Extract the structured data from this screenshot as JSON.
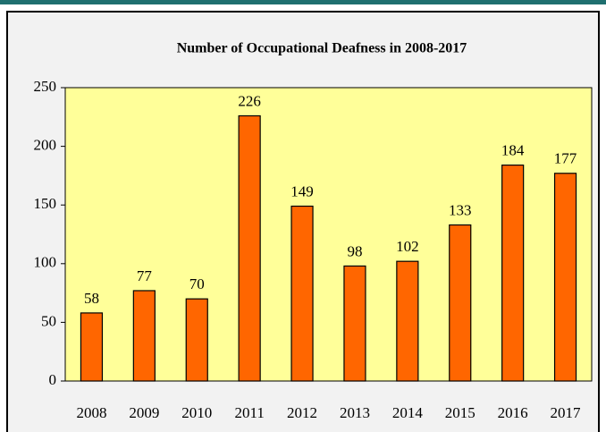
{
  "chart_data": {
    "type": "bar",
    "title": "Number of Occupational Deafness in 2008-2017",
    "categories": [
      "2008",
      "2009",
      "2010",
      "2011",
      "2012",
      "2013",
      "2014",
      "2015",
      "2016",
      "2017"
    ],
    "values": [
      58,
      77,
      70,
      226,
      149,
      98,
      102,
      133,
      184,
      177
    ],
    "color": "#ff6600",
    "plot_background": "#ffff99",
    "ylim": [
      0,
      250
    ],
    "yticks": [
      0,
      50,
      100,
      150,
      200,
      250
    ],
    "grid": false
  }
}
